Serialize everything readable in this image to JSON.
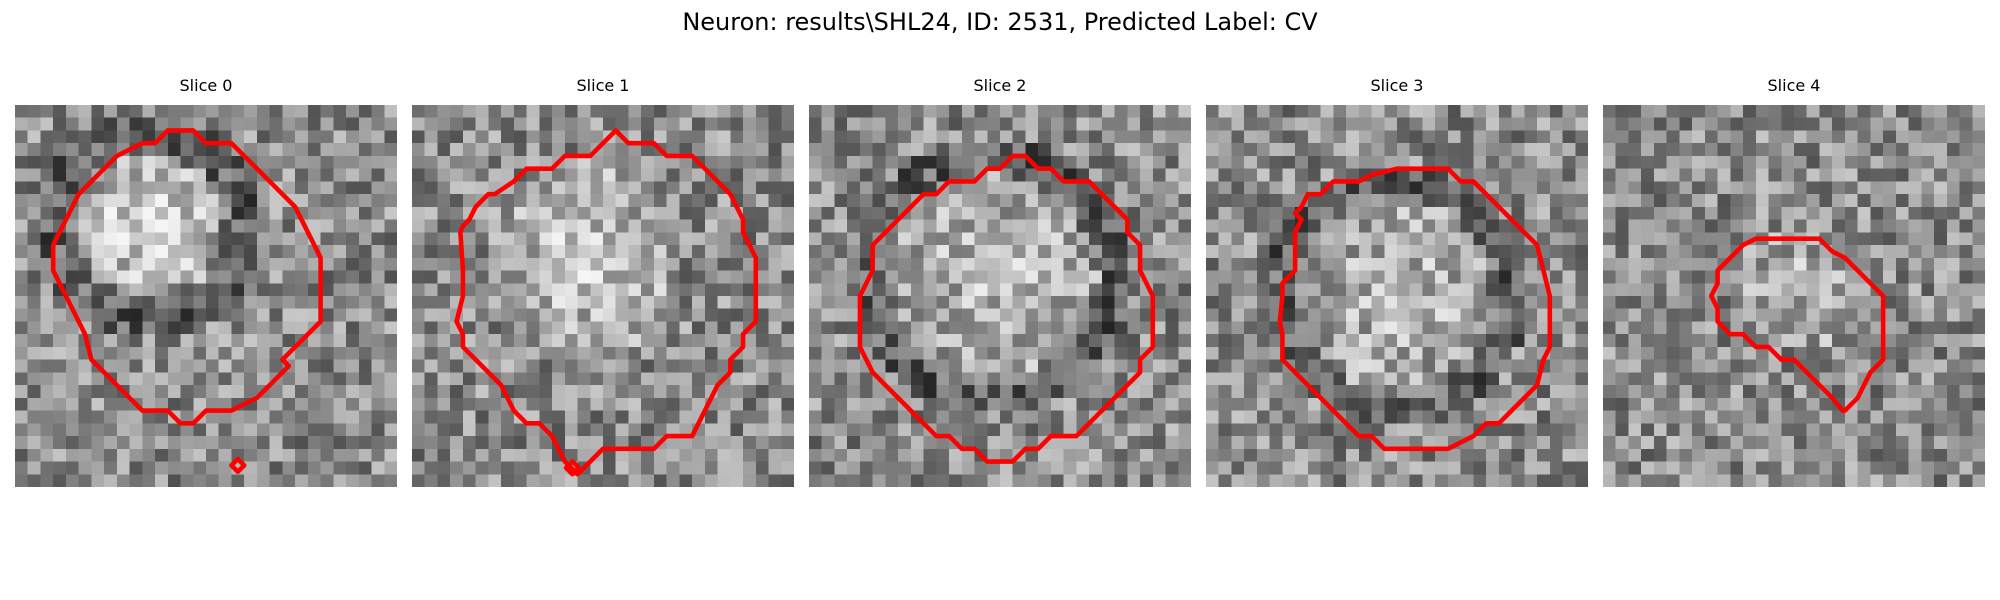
{
  "figure": {
    "title": "Neuron: results\\SHL24, ID: 2531, Predicted Label: CV"
  },
  "panels": [
    {
      "title": "Slice 0",
      "seed": 11,
      "blob": {
        "cx": 10.5,
        "cy": 9.5,
        "r": 6.2,
        "bright": 70
      },
      "dark_ring": true
    },
    {
      "title": "Slice 1",
      "seed": 23,
      "blob": {
        "cx": 13.5,
        "cy": 12.0,
        "r": 8.0,
        "bright": 45
      },
      "dark_ring": false
    },
    {
      "title": "Slice 2",
      "seed": 37,
      "blob": {
        "cx": 14.5,
        "cy": 13.5,
        "r": 8.5,
        "bright": 25
      },
      "dark_ring": true
    },
    {
      "title": "Slice 3",
      "seed": 41,
      "blob": {
        "cx": 15.0,
        "cy": 15.0,
        "r": 8.0,
        "bright": 20
      },
      "dark_ring": true
    },
    {
      "title": "Slice 4",
      "seed": 53,
      "blob": {
        "cx": 15.0,
        "cy": 14.5,
        "r": 5.0,
        "bright": 15
      },
      "dark_ring": false
    }
  ],
  "colors": {
    "contour": "#ff0000"
  }
}
